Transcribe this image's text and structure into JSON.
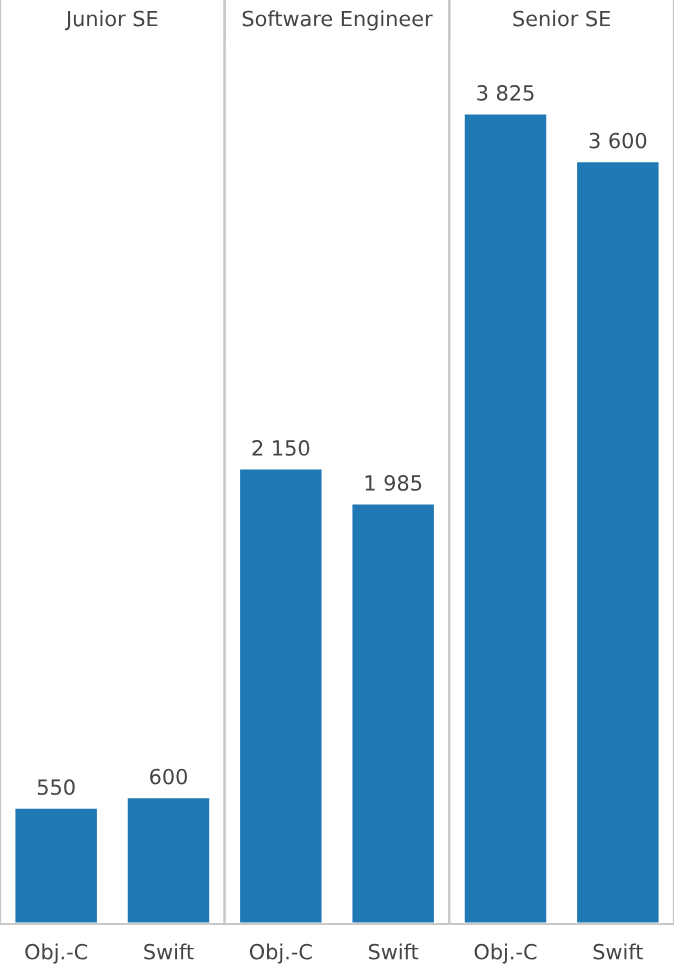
{
  "chart_data": [
    {
      "type": "bar",
      "title": "Junior SE",
      "categories": [
        "Obj.-C",
        "Swift"
      ],
      "values": [
        550,
        600
      ],
      "value_labels": [
        "550",
        "600"
      ],
      "color": "#2078b4",
      "ylim": [
        0,
        4170
      ],
      "tick_labels": "x",
      "grid": false,
      "legend": false
    },
    {
      "type": "bar",
      "title": "Software Engineer",
      "categories": [
        "Obj.-C",
        "Swift"
      ],
      "values": [
        2150,
        1985
      ],
      "value_labels": [
        "2 150",
        "1 985"
      ],
      "color": "#2078b4",
      "ylim": [
        0,
        4170
      ],
      "tick_labels": "x",
      "grid": false,
      "legend": false
    },
    {
      "type": "bar",
      "title": "Senior SE",
      "categories": [
        "Obj.-C",
        "Swift"
      ],
      "values": [
        3825,
        3600
      ],
      "value_labels": [
        "3 825",
        "3 600"
      ],
      "color": "#2078b4",
      "ylim": [
        0,
        4170
      ],
      "tick_labels": "x",
      "grid": false,
      "legend": false
    }
  ]
}
